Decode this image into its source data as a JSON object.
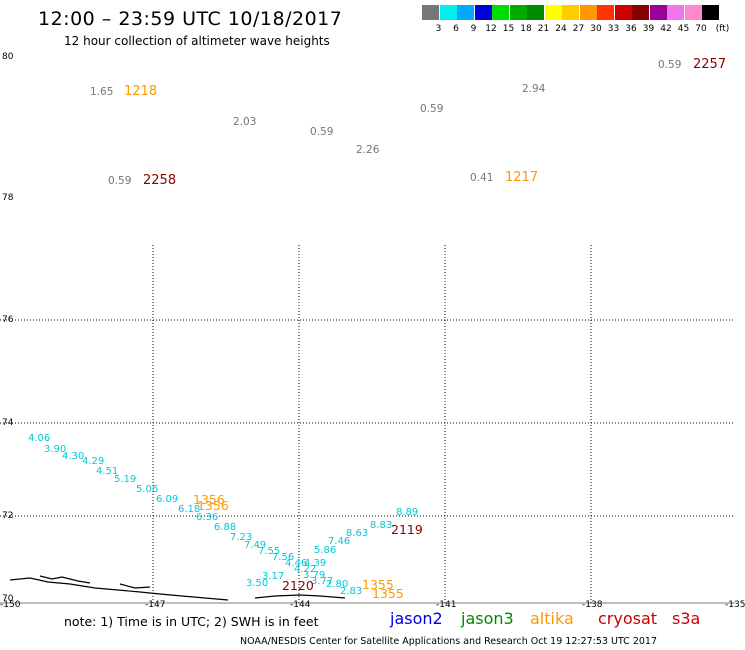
{
  "title": "12:00 – 23:59 UTC 10/18/2017",
  "subtitle": "12 hour collection of altimeter wave heights",
  "legend": {
    "colors": [
      "#777777",
      "#00efef",
      "#00aaff",
      "#0000dd",
      "#00dd00",
      "#00aa00",
      "#008800",
      "#ffff00",
      "#ffcc00",
      "#ff9900",
      "#ff3300",
      "#cc0000",
      "#880000",
      "#990099",
      "#ee77ee",
      "#ff88cc",
      "#000000"
    ],
    "labels": [
      "3",
      "6",
      "9",
      "12",
      "15",
      "18",
      "21",
      "24",
      "27",
      "30",
      "33",
      "36",
      "39",
      "42",
      "45",
      "70",
      "(ft)"
    ]
  },
  "axes": {
    "x_ticks": [
      "-150",
      "-147",
      "-144",
      "-141",
      "-138",
      "-135"
    ],
    "y_ticks": [
      "80",
      "78",
      "76",
      "74",
      "72",
      "70"
    ]
  },
  "annotations": {
    "north_values": [
      {
        "text": "1.65",
        "color": "#777777"
      },
      {
        "text": "1218",
        "color": "#ff9900"
      },
      {
        "text": "2.03",
        "color": "#777777"
      },
      {
        "text": "0.59",
        "color": "#777777"
      },
      {
        "text": "2.26",
        "color": "#777777"
      },
      {
        "text": "0.59",
        "color": "#777777"
      },
      {
        "text": "2.94",
        "color": "#777777"
      },
      {
        "text": "0.59",
        "color": "#777777"
      },
      {
        "text": "2257",
        "color": "#880000"
      },
      {
        "text": "0.59",
        "color": "#777777"
      },
      {
        "text": "2258",
        "color": "#880000"
      },
      {
        "text": "0.41",
        "color": "#777777"
      },
      {
        "text": "1217",
        "color": "#ff9900"
      }
    ],
    "track_values": [
      "4.06",
      "3.90",
      "4.30",
      "4.29",
      "4.51",
      "5.19",
      "5.06",
      "6.09",
      "6.18",
      "6.36",
      "6.88",
      "7.23",
      "7.49",
      "7.55",
      "7.56",
      "4.46",
      "4.22",
      "3.79",
      "3.77",
      "3.50",
      "3.17",
      "2.80",
      "2.83",
      "4.39",
      "5.86",
      "7.46",
      "8.63",
      "8.83",
      "8.89"
    ],
    "time_labels": [
      {
        "text": "1356",
        "color": "#ff9900"
      },
      {
        "text": "1356",
        "color": "#ff9900"
      },
      {
        "text": "2119",
        "color": "#880000"
      },
      {
        "text": "2120",
        "color": "#880000"
      },
      {
        "text": "1355",
        "color": "#ff9900"
      },
      {
        "text": "1355",
        "color": "#ff9900"
      }
    ]
  },
  "footer": {
    "note": "note: 1) Time is in UTC; 2) SWH is in feet",
    "satellites": [
      {
        "name": "jason2",
        "color": "#0000dd"
      },
      {
        "name": "jason3",
        "color": "#008800"
      },
      {
        "name": "altika",
        "color": "#ff9900"
      },
      {
        "name": "cryosat",
        "color": "#cc0000"
      },
      {
        "name": "s3a",
        "color": "#cc0000"
      }
    ],
    "credit": "NOAA/NESDIS Center for Satellite Applications and Research    Oct 19 12:27:53 UTC 2017"
  }
}
